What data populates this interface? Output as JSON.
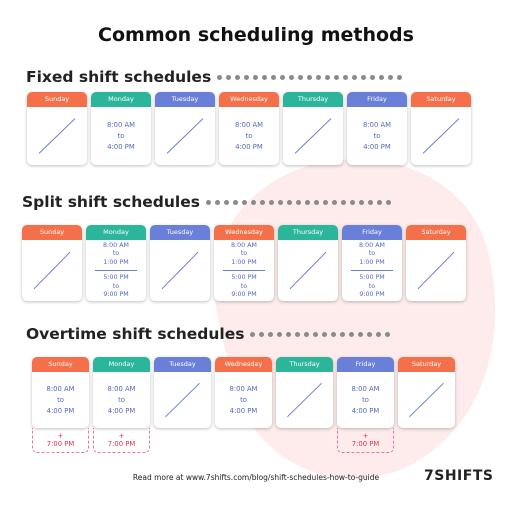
{
  "title": "Common scheduling methods",
  "sections": [
    {
      "title": "Fixed shift schedules",
      "days": [
        {
          "name": "Sunday",
          "shifts": []
        },
        {
          "name": "Monday",
          "shifts": [
            [
              "8:00 AM",
              "to",
              "4:00 PM"
            ]
          ]
        },
        {
          "name": "Tuesday",
          "shifts": []
        },
        {
          "name": "Wednesday",
          "shifts": [
            [
              "8:00 AM",
              "to",
              "4:00 PM"
            ]
          ]
        },
        {
          "name": "Thursday",
          "shifts": []
        },
        {
          "name": "Friday",
          "shifts": [
            [
              "8:00 AM",
              "to",
              "4:00 PM"
            ]
          ]
        },
        {
          "name": "Saturday",
          "shifts": []
        }
      ]
    },
    {
      "title": "Split shift schedules",
      "days": [
        {
          "name": "Sunday",
          "shifts": []
        },
        {
          "name": "Monday",
          "shifts": [
            [
              "8:00 AM",
              "to",
              "1:00 PM"
            ],
            [
              "5:00 PM",
              "to",
              "9:00 PM"
            ]
          ]
        },
        {
          "name": "Tuesday",
          "shifts": []
        },
        {
          "name": "Wednesday",
          "shifts": [
            [
              "8:00 AM",
              "to",
              "1:00 PM"
            ],
            [
              "5:00 PM",
              "to",
              "9:00 PM"
            ]
          ]
        },
        {
          "name": "Thursday",
          "shifts": []
        },
        {
          "name": "Friday",
          "shifts": [
            [
              "8:00 AM",
              "to",
              "1:00 PM"
            ],
            [
              "5:00 PM",
              "to",
              "9:00 PM"
            ]
          ]
        },
        {
          "name": "Saturday",
          "shifts": []
        }
      ]
    },
    {
      "title": "Overtime shift schedules",
      "days": [
        {
          "name": "Sunday",
          "shifts": [
            [
              "8:00 AM",
              "to",
              "4:00 PM"
            ]
          ],
          "extra": [
            "+",
            "7:00 PM"
          ]
        },
        {
          "name": "Monday",
          "shifts": [
            [
              "8:00 AM",
              "to",
              "4:00 PM"
            ]
          ],
          "extra": [
            "+",
            "7:00 PM"
          ]
        },
        {
          "name": "Tuesday",
          "shifts": []
        },
        {
          "name": "Wednesday",
          "shifts": [
            [
              "8:00 AM",
              "to",
              "4:00 PM"
            ]
          ]
        },
        {
          "name": "Thursday",
          "shifts": []
        },
        {
          "name": "Friday",
          "shifts": [
            [
              "8:00 AM",
              "to",
              "4:00 PM"
            ]
          ],
          "extra": [
            "+",
            "7:00 PM"
          ]
        },
        {
          "name": "Saturday",
          "shifts": []
        }
      ]
    }
  ],
  "footer": "Read more at www.7shifts.com/blog/shift-schedules-how-to-guide",
  "logo": "7SHIFTS"
}
